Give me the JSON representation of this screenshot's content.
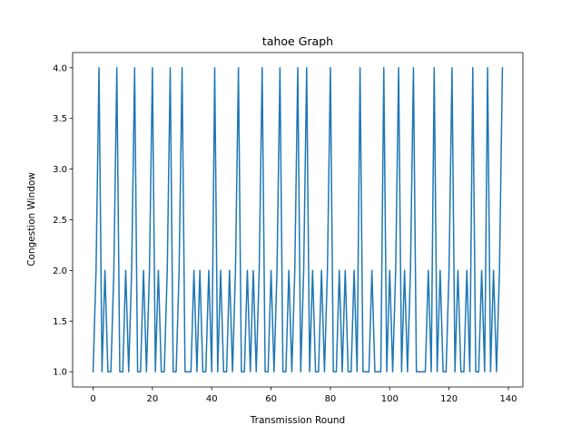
{
  "chart_data": {
    "type": "line",
    "title": "tahoe Graph",
    "xlabel": "Transmission Round",
    "ylabel": "Congestion Window",
    "xlim": [
      -6.9,
      144.9
    ],
    "ylim": [
      0.85,
      4.15
    ],
    "xticks": [
      0,
      20,
      40,
      60,
      80,
      100,
      120,
      140
    ],
    "yticks": [
      1.0,
      1.5,
      2.0,
      2.5,
      3.0,
      3.5,
      4.0
    ],
    "ytick_labels": [
      "1.0",
      "1.5",
      "2.0",
      "2.5",
      "3.0",
      "3.5",
      "4.0"
    ],
    "grid": false,
    "color": "#1f77b4",
    "series": [
      {
        "x": [
          0,
          1,
          2,
          3,
          4,
          5,
          6,
          7,
          8,
          9,
          10,
          11,
          12,
          13,
          14,
          15,
          16,
          17,
          18,
          19,
          20,
          21,
          22,
          23,
          24,
          25,
          26,
          27,
          28,
          29,
          30,
          31,
          32,
          33,
          34,
          35,
          36,
          37,
          38,
          39,
          40,
          41,
          42,
          43,
          44,
          45,
          46,
          47,
          48,
          49,
          50,
          51,
          52,
          53,
          54,
          55,
          56,
          57,
          58,
          59,
          60,
          61,
          62,
          63,
          64,
          65,
          66,
          67,
          68,
          69,
          70,
          71,
          72,
          73,
          74,
          75,
          76,
          77,
          78,
          79,
          80,
          81,
          82,
          83,
          84,
          85,
          86,
          87,
          88,
          89,
          90,
          91,
          92,
          93,
          94,
          95,
          96,
          97,
          98,
          99,
          100,
          101,
          102,
          103,
          104,
          105,
          106,
          107,
          108,
          109,
          110,
          111,
          112,
          113,
          114,
          115,
          116,
          117,
          118,
          119,
          120,
          121,
          122,
          123,
          124,
          125,
          126,
          127,
          128,
          129,
          130,
          131,
          132,
          133,
          134,
          135,
          136,
          137,
          138
        ],
        "y": [
          1,
          2,
          4,
          1,
          2,
          1,
          1,
          2,
          4,
          1,
          1,
          2,
          1,
          2,
          4,
          1,
          1,
          2,
          1,
          2,
          4,
          1,
          2,
          1,
          1,
          2,
          4,
          1,
          1,
          2,
          4,
          1,
          1,
          1,
          2,
          1,
          2,
          1,
          1,
          2,
          1,
          4,
          1,
          2,
          1,
          1,
          2,
          1,
          2,
          4,
          1,
          1,
          2,
          1,
          2,
          1,
          2,
          4,
          1,
          1,
          2,
          1,
          2,
          4,
          1,
          1,
          2,
          1,
          2,
          4,
          1,
          2,
          4,
          1,
          2,
          1,
          1,
          2,
          1,
          2,
          4,
          1,
          1,
          2,
          1,
          2,
          1,
          1,
          2,
          1,
          4,
          1,
          1,
          1,
          2,
          1,
          1,
          1,
          4,
          1,
          2,
          1,
          2,
          4,
          1,
          2,
          1,
          2,
          4,
          1,
          1,
          1,
          1,
          2,
          1,
          4,
          1,
          2,
          1,
          1,
          2,
          4,
          1,
          2,
          1,
          1,
          2,
          1,
          4,
          1,
          1,
          2,
          1,
          4,
          1,
          2,
          1,
          2,
          4
        ]
      }
    ]
  }
}
